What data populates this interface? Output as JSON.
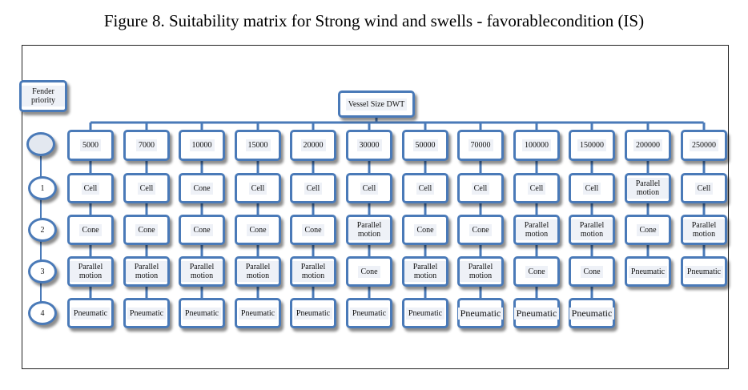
{
  "caption": "Figure 8. Suitability matrix for Strong wind and swells - favorablecondition (IS)",
  "root_label": "Fender priority",
  "vessel_label": "Vessel Size DWT",
  "priorities": [
    "1",
    "2",
    "3",
    "4"
  ],
  "columns": [
    {
      "size": "5000",
      "p1": "Cell",
      "p2": "Cone",
      "p3": "Parallel motion",
      "p4": "Pneumatic"
    },
    {
      "size": "7000",
      "p1": "Cell",
      "p2": "Cone",
      "p3": "Parallel motion",
      "p4": "Pneumatic"
    },
    {
      "size": "10000",
      "p1": "Cone",
      "p2": "Cone",
      "p3": "Parallel motion",
      "p4": "Pneumatic"
    },
    {
      "size": "15000",
      "p1": "Cell",
      "p2": "Cone",
      "p3": "Parallel motion",
      "p4": "Pneumatic"
    },
    {
      "size": "20000",
      "p1": "Cell",
      "p2": "Cone",
      "p3": "Parallel motion",
      "p4": "Pneumatic"
    },
    {
      "size": "30000",
      "p1": "Cell",
      "p2": "Parallel motion",
      "p3": "Cone",
      "p4": "Pneumatic"
    },
    {
      "size": "50000",
      "p1": "Cell",
      "p2": "Cone",
      "p3": "Parallel motion",
      "p4": "Pneumatic"
    },
    {
      "size": "70000",
      "p1": "Cell",
      "p2": "Cone",
      "p3": "Parallel motion",
      "p4": "Pneumatic"
    },
    {
      "size": "100000",
      "p1": "Cell",
      "p2": "Parallel motion",
      "p3": "Cone",
      "p4": "Pneumatic"
    },
    {
      "size": "150000",
      "p1": "Cell",
      "p2": "Parallel motion",
      "p3": "Cone",
      "p4": "Pneumatic"
    },
    {
      "size": "200000",
      "p1": "Parallel motion",
      "p2": "Cone",
      "p3": "Pneumatic",
      "p4": ""
    },
    {
      "size": "250000",
      "p1": "Cell",
      "p2": "Parallel motion",
      "p3": "Pneumatic",
      "p4": ""
    }
  ],
  "colors": {
    "box_border": "#4a7ab8",
    "box_fill": "#eef1f7"
  }
}
